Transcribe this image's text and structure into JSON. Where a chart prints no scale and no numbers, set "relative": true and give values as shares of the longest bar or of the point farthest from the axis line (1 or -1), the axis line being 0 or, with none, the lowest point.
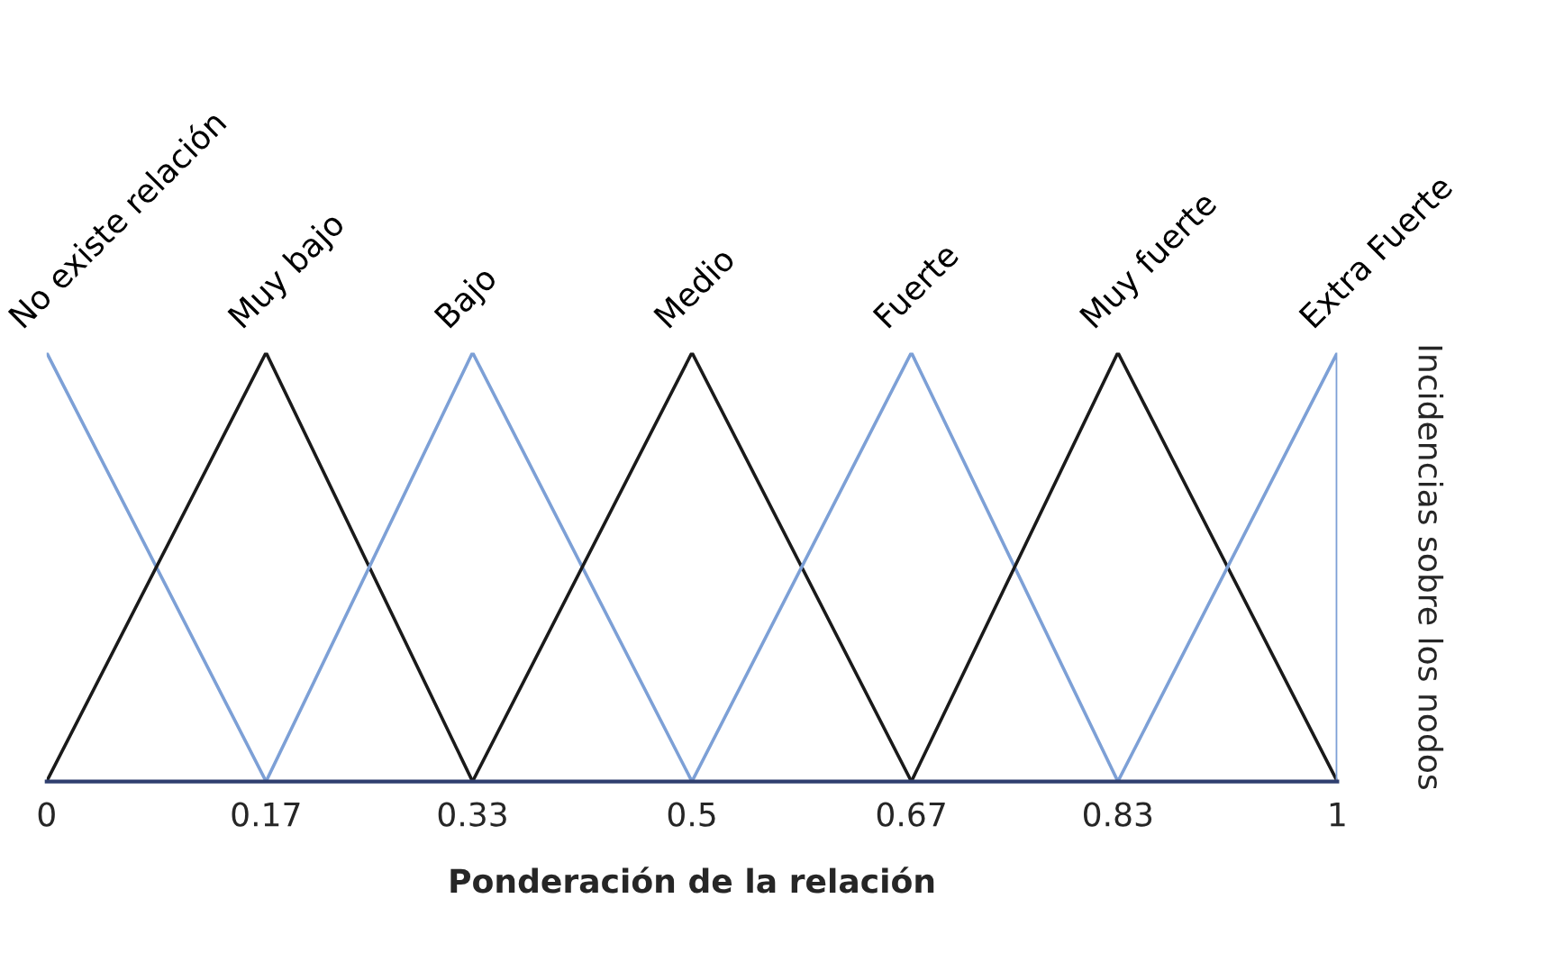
{
  "chart_data": {
    "type": "line",
    "relative": true,
    "xlabel": "Ponderación de la relación",
    "ylabel": "Incidencias sobre los nodos",
    "xlim": [
      0,
      1
    ],
    "xticks": [
      0,
      0.17,
      0.33,
      0.5,
      0.67,
      0.83,
      1
    ],
    "grid": false,
    "legend": false,
    "marker": "none",
    "line_style": "solid",
    "series": [
      {
        "name": "No existe relación",
        "color": "#7da0d6",
        "x": [
          0,
          0.17
        ],
        "values": [
          1,
          0
        ]
      },
      {
        "name": "Muy bajo",
        "color": "#1a1a1a",
        "x": [
          0,
          0.17,
          0.33
        ],
        "values": [
          0,
          1,
          0
        ]
      },
      {
        "name": "Bajo",
        "color": "#7da0d6",
        "x": [
          0.17,
          0.33,
          0.5
        ],
        "values": [
          0,
          1,
          0
        ]
      },
      {
        "name": "Medio",
        "color": "#1a1a1a",
        "x": [
          0.33,
          0.5,
          0.67
        ],
        "values": [
          0,
          1,
          0
        ]
      },
      {
        "name": "Fuerte",
        "color": "#7da0d6",
        "x": [
          0.5,
          0.67,
          0.83
        ],
        "values": [
          0,
          1,
          0
        ]
      },
      {
        "name": "Muy fuerte",
        "color": "#1a1a1a",
        "x": [
          0.67,
          0.83,
          1
        ],
        "values": [
          0,
          1,
          0
        ]
      },
      {
        "name": "Extra Fuerte",
        "color": "#7da0d6",
        "x": [
          0.83,
          1,
          1
        ],
        "values": [
          0,
          1,
          0
        ]
      }
    ]
  }
}
